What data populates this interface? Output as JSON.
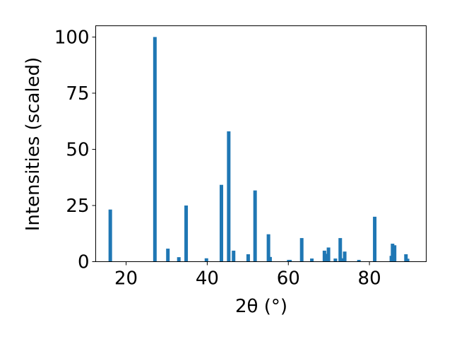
{
  "chart_data": {
    "type": "bar",
    "xlabel": "2θ (°)",
    "ylabel": "Intensities (scaled)",
    "xlim": [
      12.5,
      94
    ],
    "ylim": [
      0,
      105
    ],
    "x_ticks": [
      20,
      40,
      60,
      80
    ],
    "y_ticks": [
      0,
      25,
      50,
      75,
      100
    ],
    "grid": false,
    "bar_color": "#1f77b4",
    "x": [
      16.1,
      27.1,
      30.3,
      33.0,
      34.8,
      39.8,
      43.5,
      45.3,
      46.5,
      50.1,
      51.8,
      55.1,
      55.5,
      60.1,
      60.4,
      63.3,
      65.8,
      68.9,
      69.4,
      69.9,
      71.6,
      72.8,
      73.3,
      73.9,
      77.4,
      81.3,
      85.4,
      85.7,
      86.2,
      89.0,
      89.4
    ],
    "values": [
      23.2,
      100.0,
      5.8,
      2.0,
      25.0,
      1.5,
      34.2,
      58.0,
      4.9,
      3.3,
      31.7,
      12.2,
      2.1,
      0.8,
      0.8,
      10.5,
      1.4,
      4.9,
      3.5,
      6.3,
      1.4,
      10.5,
      1.5,
      4.5,
      0.8,
      20.0,
      2.6,
      8.0,
      7.3,
      3.3,
      1.3
    ]
  }
}
